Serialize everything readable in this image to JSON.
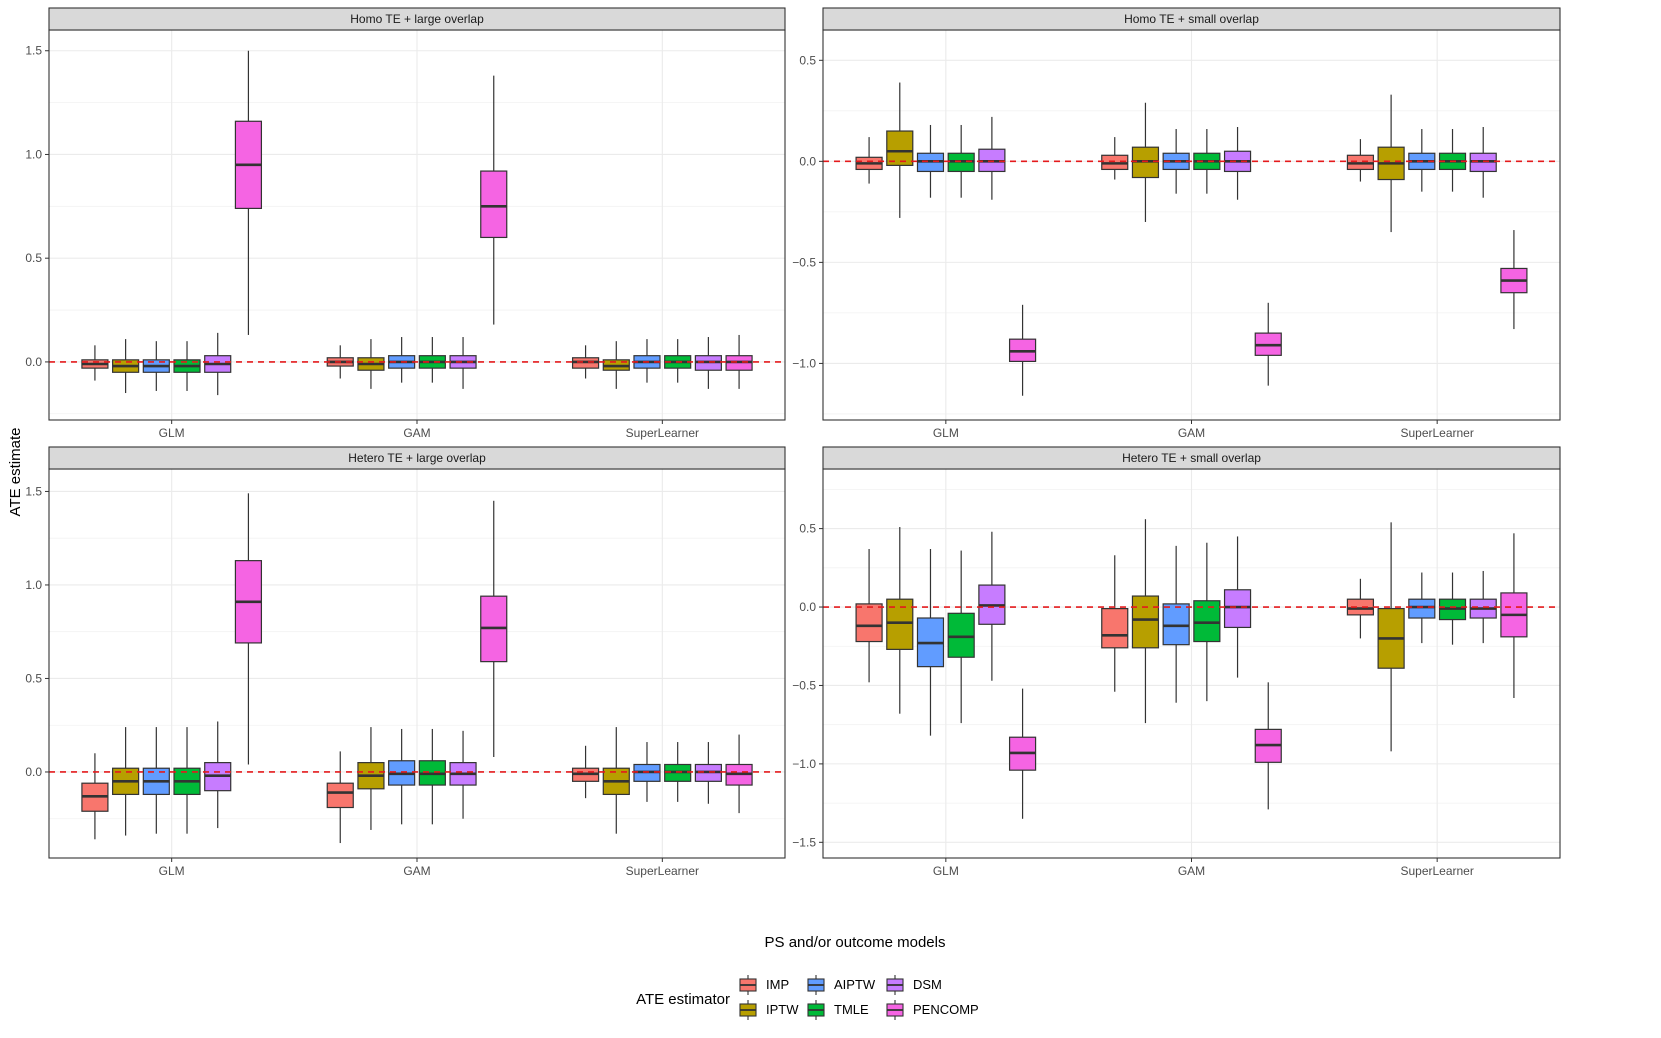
{
  "chart_data": {
    "type": "boxplot",
    "xlabel": "PS and/or outcome models",
    "ylabel": "ATE estimate",
    "categories": [
      "GLM",
      "GAM",
      "SuperLearner"
    ],
    "reference_line": 0,
    "colors": {
      "IMP": "#F8766D",
      "IPTW": "#B79F00",
      "AIPTW": "#619CFF",
      "TMLE": "#00BA38",
      "DSM": "#C77CFF",
      "PENCOMP": "#F564E3",
      "reference": "#E41A1C",
      "strip": "#D9D9D9"
    },
    "legend": {
      "title": "ATE estimator",
      "position": "bottom",
      "entries": [
        "IMP",
        "IPTW",
        "AIPTW",
        "TMLE",
        "DSM",
        "PENCOMP"
      ]
    },
    "panels": [
      {
        "title": "Homo TE + large overlap",
        "ylim": [
          -0.28,
          1.6
        ],
        "yticks": [
          0,
          0.5,
          1,
          1.5
        ],
        "ytick_labels": [
          "0.0",
          "0.5",
          "1.0",
          "1.5"
        ],
        "groups": [
          {
            "category": "GLM",
            "boxes": [
              {
                "estimator": "IMP",
                "min": -0.09,
                "q1": -0.03,
                "median": -0.01,
                "q3": 0.01,
                "max": 0.08
              },
              {
                "estimator": "IPTW",
                "min": -0.15,
                "q1": -0.05,
                "median": -0.02,
                "q3": 0.01,
                "max": 0.11
              },
              {
                "estimator": "AIPTW",
                "min": -0.14,
                "q1": -0.05,
                "median": -0.02,
                "q3": 0.01,
                "max": 0.1
              },
              {
                "estimator": "TMLE",
                "min": -0.14,
                "q1": -0.05,
                "median": -0.02,
                "q3": 0.01,
                "max": 0.1
              },
              {
                "estimator": "DSM",
                "min": -0.16,
                "q1": -0.05,
                "median": -0.01,
                "q3": 0.03,
                "max": 0.14
              },
              {
                "estimator": "PENCOMP",
                "min": 0.13,
                "q1": 0.74,
                "median": 0.95,
                "q3": 1.16,
                "max": 1.5
              }
            ]
          },
          {
            "category": "GAM",
            "boxes": [
              {
                "estimator": "IMP",
                "min": -0.08,
                "q1": -0.02,
                "median": 0.0,
                "q3": 0.02,
                "max": 0.08
              },
              {
                "estimator": "IPTW",
                "min": -0.13,
                "q1": -0.04,
                "median": -0.01,
                "q3": 0.02,
                "max": 0.11
              },
              {
                "estimator": "AIPTW",
                "min": -0.1,
                "q1": -0.03,
                "median": 0.0,
                "q3": 0.03,
                "max": 0.12
              },
              {
                "estimator": "TMLE",
                "min": -0.1,
                "q1": -0.03,
                "median": 0.0,
                "q3": 0.03,
                "max": 0.12
              },
              {
                "estimator": "DSM",
                "min": -0.13,
                "q1": -0.03,
                "median": 0.0,
                "q3": 0.03,
                "max": 0.12
              },
              {
                "estimator": "PENCOMP",
                "min": 0.18,
                "q1": 0.6,
                "median": 0.75,
                "q3": 0.92,
                "max": 1.38
              }
            ]
          },
          {
            "category": "SuperLearner",
            "boxes": [
              {
                "estimator": "IMP",
                "min": -0.08,
                "q1": -0.03,
                "median": 0.0,
                "q3": 0.02,
                "max": 0.08
              },
              {
                "estimator": "IPTW",
                "min": -0.13,
                "q1": -0.04,
                "median": -0.02,
                "q3": 0.01,
                "max": 0.1
              },
              {
                "estimator": "AIPTW",
                "min": -0.1,
                "q1": -0.03,
                "median": 0.0,
                "q3": 0.03,
                "max": 0.11
              },
              {
                "estimator": "TMLE",
                "min": -0.1,
                "q1": -0.03,
                "median": 0.0,
                "q3": 0.03,
                "max": 0.11
              },
              {
                "estimator": "DSM",
                "min": -0.13,
                "q1": -0.04,
                "median": 0.0,
                "q3": 0.03,
                "max": 0.12
              },
              {
                "estimator": "PENCOMP",
                "min": -0.13,
                "q1": -0.04,
                "median": 0.0,
                "q3": 0.03,
                "max": 0.13
              }
            ]
          }
        ]
      },
      {
        "title": "Homo TE + small overlap",
        "ylim": [
          -1.28,
          0.65
        ],
        "yticks": [
          -1,
          -0.5,
          0,
          0.5
        ],
        "ytick_labels": [
          "−1.0",
          "−0.5",
          "0.0",
          "0.5"
        ],
        "groups": [
          {
            "category": "GLM",
            "boxes": [
              {
                "estimator": "IMP",
                "min": -0.11,
                "q1": -0.04,
                "median": -0.01,
                "q3": 0.02,
                "max": 0.12
              },
              {
                "estimator": "IPTW",
                "min": -0.28,
                "q1": -0.02,
                "median": 0.05,
                "q3": 0.15,
                "max": 0.39
              },
              {
                "estimator": "AIPTW",
                "min": -0.18,
                "q1": -0.05,
                "median": 0.0,
                "q3": 0.04,
                "max": 0.18
              },
              {
                "estimator": "TMLE",
                "min": -0.18,
                "q1": -0.05,
                "median": 0.0,
                "q3": 0.04,
                "max": 0.18
              },
              {
                "estimator": "DSM",
                "min": -0.19,
                "q1": -0.05,
                "median": 0.0,
                "q3": 0.06,
                "max": 0.22
              },
              {
                "estimator": "PENCOMP",
                "min": -1.16,
                "q1": -0.99,
                "median": -0.94,
                "q3": -0.88,
                "max": -0.71
              }
            ]
          },
          {
            "category": "GAM",
            "boxes": [
              {
                "estimator": "IMP",
                "min": -0.09,
                "q1": -0.04,
                "median": -0.01,
                "q3": 0.03,
                "max": 0.12
              },
              {
                "estimator": "IPTW",
                "min": -0.3,
                "q1": -0.08,
                "median": 0.0,
                "q3": 0.07,
                "max": 0.29
              },
              {
                "estimator": "AIPTW",
                "min": -0.16,
                "q1": -0.04,
                "median": 0.0,
                "q3": 0.04,
                "max": 0.16
              },
              {
                "estimator": "TMLE",
                "min": -0.16,
                "q1": -0.04,
                "median": 0.0,
                "q3": 0.04,
                "max": 0.16
              },
              {
                "estimator": "DSM",
                "min": -0.19,
                "q1": -0.05,
                "median": 0.0,
                "q3": 0.05,
                "max": 0.17
              },
              {
                "estimator": "PENCOMP",
                "min": -1.11,
                "q1": -0.96,
                "median": -0.91,
                "q3": -0.85,
                "max": -0.7
              }
            ]
          },
          {
            "category": "SuperLearner",
            "boxes": [
              {
                "estimator": "IMP",
                "min": -0.1,
                "q1": -0.04,
                "median": -0.01,
                "q3": 0.03,
                "max": 0.11
              },
              {
                "estimator": "IPTW",
                "min": -0.35,
                "q1": -0.09,
                "median": -0.01,
                "q3": 0.07,
                "max": 0.33
              },
              {
                "estimator": "AIPTW",
                "min": -0.15,
                "q1": -0.04,
                "median": 0.0,
                "q3": 0.04,
                "max": 0.16
              },
              {
                "estimator": "TMLE",
                "min": -0.15,
                "q1": -0.04,
                "median": 0.0,
                "q3": 0.04,
                "max": 0.16
              },
              {
                "estimator": "DSM",
                "min": -0.18,
                "q1": -0.05,
                "median": 0.0,
                "q3": 0.04,
                "max": 0.17
              },
              {
                "estimator": "PENCOMP",
                "min": -0.83,
                "q1": -0.65,
                "median": -0.59,
                "q3": -0.53,
                "max": -0.34
              }
            ]
          }
        ]
      },
      {
        "title": "Hetero TE + large overlap",
        "ylim": [
          -0.46,
          1.62
        ],
        "yticks": [
          0,
          0.5,
          1,
          1.5
        ],
        "ytick_labels": [
          "0.0",
          "0.5",
          "1.0",
          "1.5"
        ],
        "groups": [
          {
            "category": "GLM",
            "boxes": [
              {
                "estimator": "IMP",
                "min": -0.36,
                "q1": -0.21,
                "median": -0.13,
                "q3": -0.06,
                "max": 0.1
              },
              {
                "estimator": "IPTW",
                "min": -0.34,
                "q1": -0.12,
                "median": -0.05,
                "q3": 0.02,
                "max": 0.24
              },
              {
                "estimator": "AIPTW",
                "min": -0.33,
                "q1": -0.12,
                "median": -0.05,
                "q3": 0.02,
                "max": 0.24
              },
              {
                "estimator": "TMLE",
                "min": -0.33,
                "q1": -0.12,
                "median": -0.05,
                "q3": 0.02,
                "max": 0.24
              },
              {
                "estimator": "DSM",
                "min": -0.3,
                "q1": -0.1,
                "median": -0.02,
                "q3": 0.05,
                "max": 0.27
              },
              {
                "estimator": "PENCOMP",
                "min": 0.04,
                "q1": 0.69,
                "median": 0.91,
                "q3": 1.13,
                "max": 1.49
              }
            ]
          },
          {
            "category": "GAM",
            "boxes": [
              {
                "estimator": "IMP",
                "min": -0.38,
                "q1": -0.19,
                "median": -0.11,
                "q3": -0.06,
                "max": 0.11
              },
              {
                "estimator": "IPTW",
                "min": -0.31,
                "q1": -0.09,
                "median": -0.02,
                "q3": 0.05,
                "max": 0.24
              },
              {
                "estimator": "AIPTW",
                "min": -0.28,
                "q1": -0.07,
                "median": -0.01,
                "q3": 0.06,
                "max": 0.23
              },
              {
                "estimator": "TMLE",
                "min": -0.28,
                "q1": -0.07,
                "median": -0.01,
                "q3": 0.06,
                "max": 0.23
              },
              {
                "estimator": "DSM",
                "min": -0.25,
                "q1": -0.07,
                "median": -0.01,
                "q3": 0.05,
                "max": 0.22
              },
              {
                "estimator": "PENCOMP",
                "min": 0.08,
                "q1": 0.59,
                "median": 0.77,
                "q3": 0.94,
                "max": 1.45
              }
            ]
          },
          {
            "category": "SuperLearner",
            "boxes": [
              {
                "estimator": "IMP",
                "min": -0.14,
                "q1": -0.05,
                "median": -0.01,
                "q3": 0.02,
                "max": 0.14
              },
              {
                "estimator": "IPTW",
                "min": -0.33,
                "q1": -0.12,
                "median": -0.05,
                "q3": 0.02,
                "max": 0.24
              },
              {
                "estimator": "AIPTW",
                "min": -0.16,
                "q1": -0.05,
                "median": 0.0,
                "q3": 0.04,
                "max": 0.16
              },
              {
                "estimator": "TMLE",
                "min": -0.16,
                "q1": -0.05,
                "median": 0.0,
                "q3": 0.04,
                "max": 0.16
              },
              {
                "estimator": "DSM",
                "min": -0.17,
                "q1": -0.05,
                "median": 0.0,
                "q3": 0.04,
                "max": 0.16
              },
              {
                "estimator": "PENCOMP",
                "min": -0.22,
                "q1": -0.07,
                "median": -0.01,
                "q3": 0.04,
                "max": 0.2
              }
            ]
          }
        ]
      },
      {
        "title": "Hetero TE + small overlap",
        "ylim": [
          -1.6,
          0.88
        ],
        "yticks": [
          -1.5,
          -1,
          -0.5,
          0,
          0.5
        ],
        "ytick_labels": [
          "−1.5",
          "−1.0",
          "−0.5",
          "0.0",
          "0.5"
        ],
        "groups": [
          {
            "category": "GLM",
            "boxes": [
              {
                "estimator": "IMP",
                "min": -0.48,
                "q1": -0.22,
                "median": -0.12,
                "q3": 0.02,
                "max": 0.37
              },
              {
                "estimator": "IPTW",
                "min": -0.68,
                "q1": -0.27,
                "median": -0.1,
                "q3": 0.05,
                "max": 0.51
              },
              {
                "estimator": "AIPTW",
                "min": -0.82,
                "q1": -0.38,
                "median": -0.23,
                "q3": -0.07,
                "max": 0.37
              },
              {
                "estimator": "TMLE",
                "min": -0.74,
                "q1": -0.32,
                "median": -0.19,
                "q3": -0.04,
                "max": 0.36
              },
              {
                "estimator": "DSM",
                "min": -0.47,
                "q1": -0.11,
                "median": 0.01,
                "q3": 0.14,
                "max": 0.48
              },
              {
                "estimator": "PENCOMP",
                "min": -1.35,
                "q1": -1.04,
                "median": -0.93,
                "q3": -0.83,
                "max": -0.52
              }
            ]
          },
          {
            "category": "GAM",
            "boxes": [
              {
                "estimator": "IMP",
                "min": -0.54,
                "q1": -0.26,
                "median": -0.18,
                "q3": -0.01,
                "max": 0.33
              },
              {
                "estimator": "IPTW",
                "min": -0.74,
                "q1": -0.26,
                "median": -0.08,
                "q3": 0.07,
                "max": 0.56
              },
              {
                "estimator": "AIPTW",
                "min": -0.61,
                "q1": -0.24,
                "median": -0.12,
                "q3": 0.02,
                "max": 0.39
              },
              {
                "estimator": "TMLE",
                "min": -0.6,
                "q1": -0.22,
                "median": -0.1,
                "q3": 0.04,
                "max": 0.41
              },
              {
                "estimator": "DSM",
                "min": -0.45,
                "q1": -0.13,
                "median": 0.0,
                "q3": 0.11,
                "max": 0.45
              },
              {
                "estimator": "PENCOMP",
                "min": -1.29,
                "q1": -0.99,
                "median": -0.88,
                "q3": -0.78,
                "max": -0.48
              }
            ]
          },
          {
            "category": "SuperLearner",
            "boxes": [
              {
                "estimator": "IMP",
                "min": -0.2,
                "q1": -0.05,
                "median": -0.01,
                "q3": 0.05,
                "max": 0.18
              },
              {
                "estimator": "IPTW",
                "min": -0.92,
                "q1": -0.39,
                "median": -0.2,
                "q3": -0.01,
                "max": 0.54
              },
              {
                "estimator": "AIPTW",
                "min": -0.23,
                "q1": -0.07,
                "median": 0.0,
                "q3": 0.05,
                "max": 0.22
              },
              {
                "estimator": "TMLE",
                "min": -0.24,
                "q1": -0.08,
                "median": -0.01,
                "q3": 0.05,
                "max": 0.22
              },
              {
                "estimator": "DSM",
                "min": -0.23,
                "q1": -0.07,
                "median": -0.01,
                "q3": 0.05,
                "max": 0.23
              },
              {
                "estimator": "PENCOMP",
                "min": -0.58,
                "q1": -0.19,
                "median": -0.05,
                "q3": 0.09,
                "max": 0.47
              }
            ]
          }
        ]
      }
    ]
  }
}
